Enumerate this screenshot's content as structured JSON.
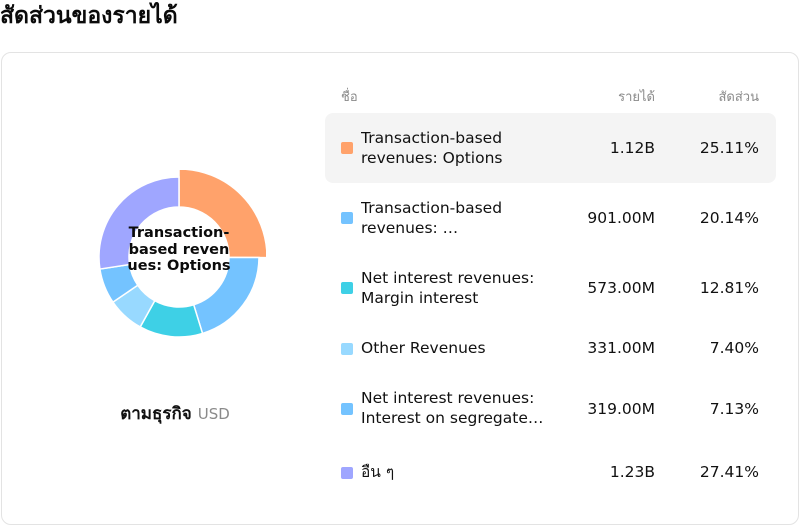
{
  "page": {
    "title": "สัดส่วนของรายได้"
  },
  "chart": {
    "center_label": "Transaction-based revenues: Options",
    "caption": "ตามธุรกิจ",
    "currency": "USD"
  },
  "table": {
    "headers": {
      "name": "ชื่อ",
      "revenue": "รายได้",
      "share": "สัดส่วน"
    }
  },
  "chart_data": {
    "type": "pie",
    "categories": [
      "Transaction-based revenues: Options",
      "Transaction-based revenues: …",
      "Net interest revenues: Margin interest",
      "Other Revenues",
      "Net interest revenues: Interest on segregate…",
      "อื่น ๆ"
    ],
    "revenue_labels": [
      "1.12B",
      "901.00M",
      "573.00M",
      "331.00M",
      "319.00M",
      "1.23B"
    ],
    "share_labels": [
      "25.11%",
      "20.14%",
      "12.81%",
      "7.40%",
      "7.13%",
      "27.41%"
    ],
    "values": [
      25.11,
      20.14,
      12.81,
      7.4,
      7.13,
      27.41
    ],
    "colors": [
      "#ffa26b",
      "#74c3ff",
      "#3ed0e6",
      "#98d9ff",
      "#74c3ff",
      "#9fa6ff"
    ],
    "highlighted_index": 0
  }
}
